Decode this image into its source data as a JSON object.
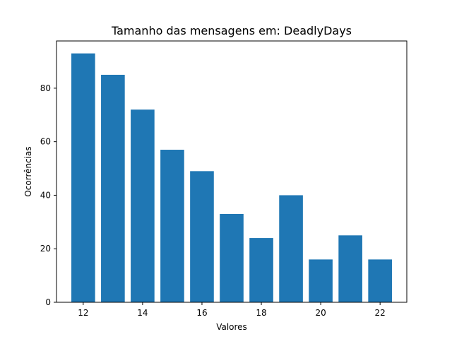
{
  "chart_data": {
    "type": "bar",
    "title": "Tamanho das mensagens em: DeadlyDays",
    "xlabel": "Valores",
    "ylabel": "Ocorrências",
    "x": [
      12,
      13,
      14,
      15,
      16,
      17,
      18,
      19,
      20,
      21,
      22
    ],
    "values": [
      93,
      85,
      72,
      57,
      49,
      33,
      24,
      40,
      16,
      25,
      16
    ],
    "xlim": [
      11.1,
      22.9
    ],
    "ylim": [
      0,
      97.65
    ],
    "xticks": [
      12,
      14,
      16,
      18,
      20,
      22
    ],
    "yticks": [
      0,
      20,
      40,
      60,
      80
    ],
    "bar_color": "#1f77b4",
    "grid": false
  }
}
